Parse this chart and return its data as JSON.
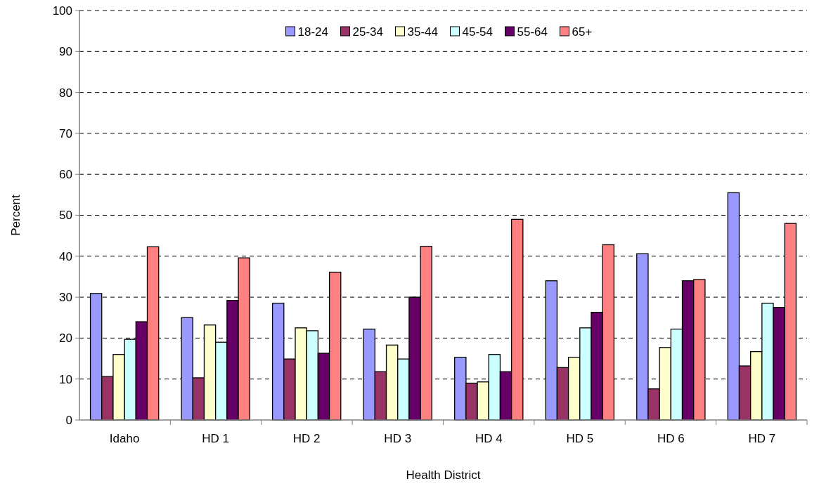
{
  "chart_data": {
    "type": "bar",
    "xlabel": "Health District",
    "ylabel": "Percent",
    "categories": [
      "Idaho",
      "HD 1",
      "HD 2",
      "HD 3",
      "HD 4",
      "HD 5",
      "HD 6",
      "HD 7"
    ],
    "series": [
      {
        "name": "18-24",
        "color": "#9999ff",
        "values": [
          30.9,
          25,
          28.5,
          22.2,
          15.3,
          34,
          40.6,
          55.5
        ]
      },
      {
        "name": "25-34",
        "color": "#993366",
        "values": [
          10.6,
          10.3,
          14.9,
          11.8,
          9,
          12.8,
          7.6,
          13.2
        ]
      },
      {
        "name": "35-44",
        "color": "#ffffcc",
        "values": [
          16,
          23.2,
          22.5,
          18.3,
          9.3,
          15.3,
          17.7,
          16.7
        ]
      },
      {
        "name": "45-54",
        "color": "#ccffff",
        "values": [
          19.7,
          19,
          21.8,
          14.9,
          16,
          22.5,
          22.2,
          28.5
        ]
      },
      {
        "name": "55-64",
        "color": "#660066",
        "values": [
          24,
          29.2,
          16.3,
          30,
          11.8,
          26.3,
          34,
          27.5
        ]
      },
      {
        "name": "65+",
        "color": "#ff8080",
        "values": [
          42.3,
          39.6,
          36.1,
          42.4,
          49,
          42.8,
          34.3,
          48
        ]
      }
    ],
    "ylim": [
      0,
      100
    ],
    "yticks": [
      0,
      10,
      20,
      30,
      40,
      50,
      60,
      70,
      80,
      90,
      100
    ],
    "grid": "y",
    "legend": "top"
  }
}
